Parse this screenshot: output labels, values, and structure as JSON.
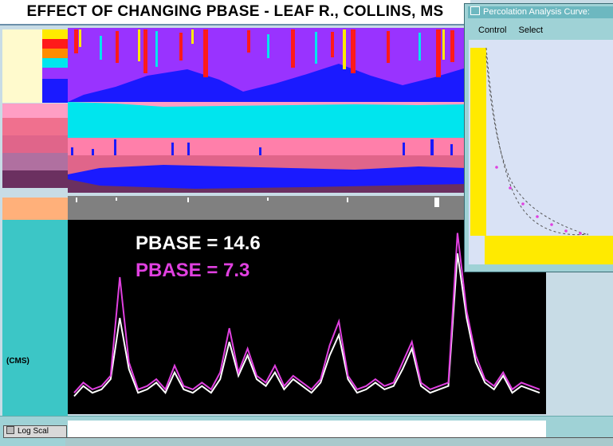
{
  "title": "EFFECT OF CHANGING PBASE - LEAF R., COLLINS, MS",
  "legend": {
    "pbase_white": "PBASE = 14.6",
    "pbase_magenta": "PBASE = 7.3",
    "white_color": "#ffffff",
    "magenta_color": "#e040e0"
  },
  "y_unit_label": "(CMS)",
  "percolation_window": {
    "title": "Percolation Analysis Curve:",
    "menu": [
      "Control",
      "Select"
    ]
  },
  "bottom": {
    "log_scale_label": "Log Scal"
  },
  "colors": {
    "accent_cyan": "#00e5ee",
    "purple": "#9933ff",
    "blue": "#0000ee",
    "pink": "#ff7faa"
  },
  "chart_data": {
    "type": "line",
    "series": [
      {
        "name": "PBASE = 14.6",
        "color": "#ffffff",
        "values": [
          2,
          5,
          3,
          4,
          7,
          25,
          10,
          3,
          4,
          6,
          3,
          9,
          4,
          3,
          5,
          3,
          7,
          18,
          8,
          14,
          7,
          5,
          9,
          4,
          7,
          5,
          3,
          6,
          14,
          20,
          7,
          3,
          4,
          6,
          4,
          5,
          10,
          16,
          5,
          3,
          4,
          5,
          44,
          25,
          12,
          6,
          4,
          8,
          3,
          5,
          4,
          3
        ]
      },
      {
        "name": "PBASE = 7.3",
        "color": "#e040e0",
        "values": [
          3,
          6,
          4,
          5,
          8,
          37,
          12,
          4,
          5,
          7,
          4,
          11,
          5,
          4,
          6,
          4,
          9,
          22,
          9,
          16,
          8,
          6,
          11,
          5,
          8,
          6,
          4,
          7,
          17,
          24,
          8,
          4,
          5,
          7,
          5,
          6,
          12,
          18,
          6,
          4,
          5,
          6,
          50,
          27,
          14,
          7,
          5,
          9,
          4,
          6,
          5,
          4
        ]
      }
    ]
  }
}
